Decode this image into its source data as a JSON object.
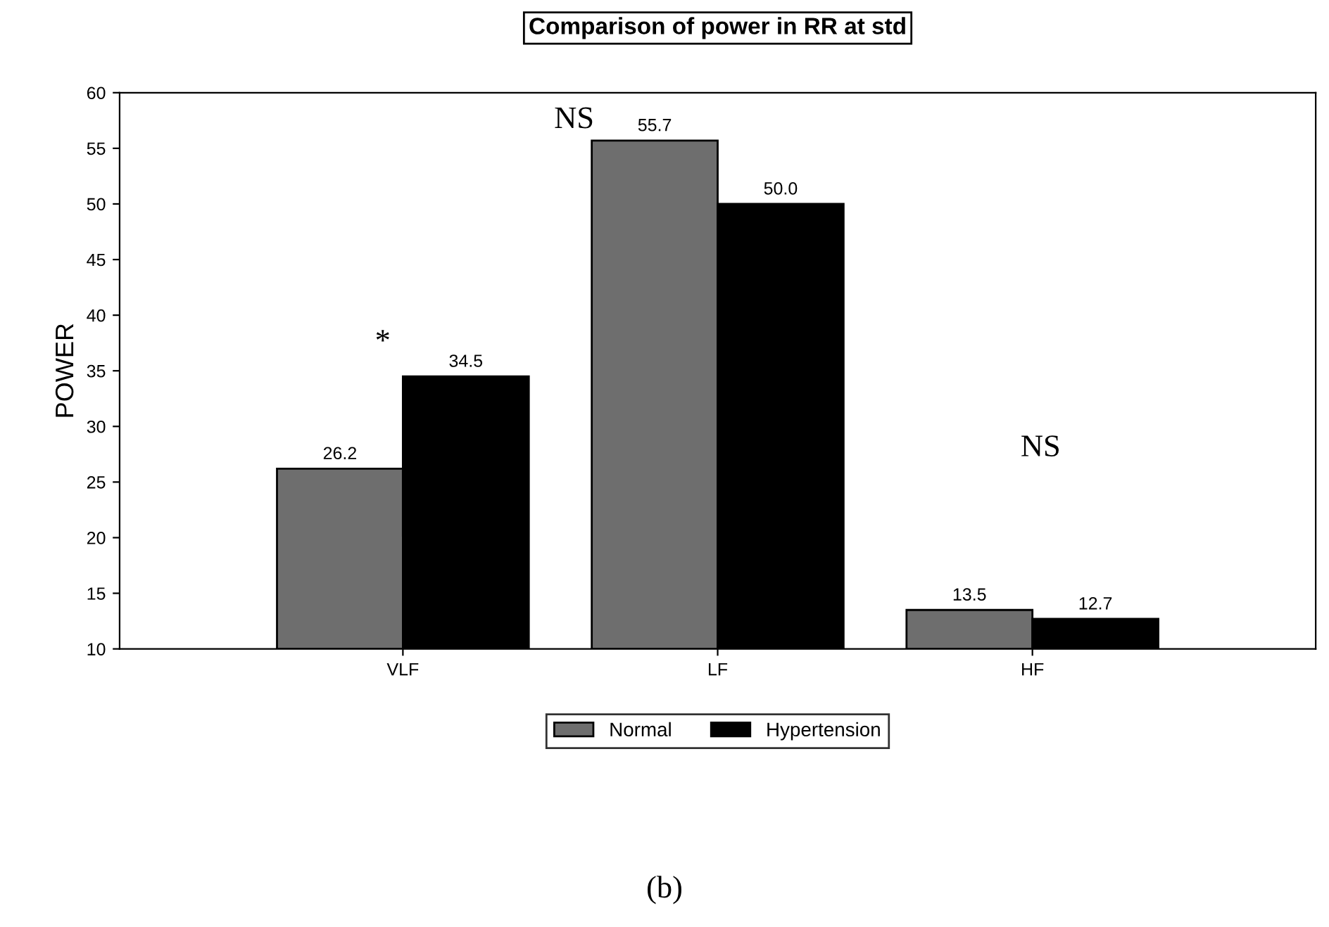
{
  "chart_data": {
    "type": "bar",
    "title": "Comparison of power in RR at std",
    "ylabel": "POWER",
    "categories": [
      "VLF",
      "LF",
      "HF"
    ],
    "series": [
      {
        "name": "Normal",
        "color": "#6e6e6e",
        "values": [
          26.2,
          55.7,
          13.5
        ],
        "value_labels": [
          "26.2",
          "55.7",
          "13.5"
        ]
      },
      {
        "name": "Hypertension",
        "color": "#000000",
        "values": [
          34.5,
          50.0,
          12.7
        ],
        "value_labels": [
          "34.5",
          "50.0",
          "12.7"
        ]
      }
    ],
    "ylim": [
      10,
      60
    ],
    "yticks": [
      10,
      15,
      20,
      25,
      30,
      35,
      40,
      45,
      50,
      55,
      60
    ],
    "grid": false,
    "legend": "bottom",
    "annotations": [
      "*",
      "NS",
      "NS",
      "(b)"
    ]
  }
}
